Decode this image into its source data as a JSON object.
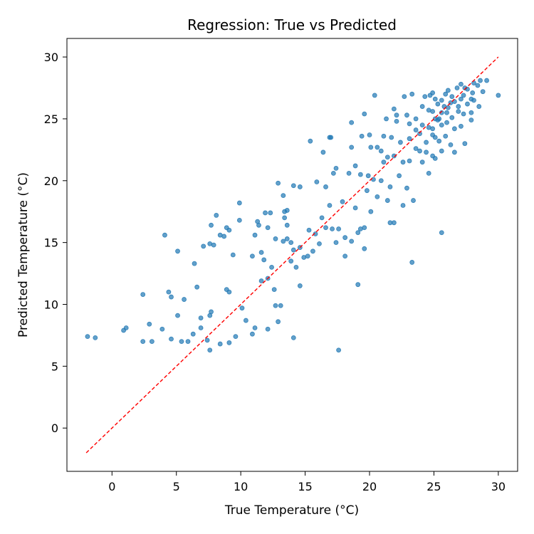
{
  "chart_data": {
    "type": "scatter",
    "title": "Regression: True vs Predicted",
    "xlabel": "True Temperature (°C)",
    "ylabel": "Predicted Temperature (°C)",
    "xlim": [
      -3.5,
      31.5
    ],
    "ylim": [
      -3.5,
      31.5
    ],
    "xticks": [
      0,
      5,
      10,
      15,
      20,
      25,
      30
    ],
    "yticks": [
      0,
      5,
      10,
      15,
      20,
      25,
      30
    ],
    "grid": false,
    "point_color": "#1f77b4",
    "reference_line": {
      "style": "dashed",
      "color": "#ff0000",
      "x": [
        -2,
        30
      ],
      "y": [
        -2,
        30
      ]
    },
    "series": [
      {
        "points": [
          [
            -1.9,
            7.4
          ],
          [
            -1.3,
            7.3
          ],
          [
            0.9,
            7.9
          ],
          [
            1.1,
            8.1
          ],
          [
            2.4,
            10.8
          ],
          [
            2.4,
            7.0
          ],
          [
            2.9,
            8.4
          ],
          [
            3.1,
            7.0
          ],
          [
            3.9,
            8.0
          ],
          [
            4.1,
            15.6
          ],
          [
            4.4,
            11.0
          ],
          [
            4.6,
            10.6
          ],
          [
            4.6,
            7.2
          ],
          [
            5.1,
            9.1
          ],
          [
            5.1,
            14.3
          ],
          [
            5.4,
            7.0
          ],
          [
            5.6,
            10.4
          ],
          [
            5.9,
            7.0
          ],
          [
            6.3,
            7.6
          ],
          [
            6.4,
            13.3
          ],
          [
            6.6,
            11.4
          ],
          [
            6.9,
            8.9
          ],
          [
            6.9,
            8.1
          ],
          [
            7.1,
            14.7
          ],
          [
            7.4,
            7.1
          ],
          [
            7.6,
            6.3
          ],
          [
            7.6,
            9.1
          ],
          [
            7.6,
            14.9
          ],
          [
            7.9,
            14.8
          ],
          [
            7.7,
            16.4
          ],
          [
            7.7,
            9.4
          ],
          [
            8.1,
            17.2
          ],
          [
            8.4,
            15.6
          ],
          [
            8.4,
            6.8
          ],
          [
            8.7,
            15.5
          ],
          [
            8.9,
            11.2
          ],
          [
            8.9,
            16.2
          ],
          [
            9.1,
            16.0
          ],
          [
            9.1,
            11.0
          ],
          [
            9.1,
            6.9
          ],
          [
            9.4,
            14.0
          ],
          [
            9.6,
            7.4
          ],
          [
            9.9,
            16.8
          ],
          [
            9.9,
            18.2
          ],
          [
            10.1,
            9.7
          ],
          [
            10.4,
            8.7
          ],
          [
            10.9,
            7.6
          ],
          [
            10.9,
            13.9
          ],
          [
            11.1,
            8.1
          ],
          [
            11.1,
            15.6
          ],
          [
            11.3,
            16.7
          ],
          [
            11.4,
            16.4
          ],
          [
            11.6,
            11.9
          ],
          [
            11.6,
            14.2
          ],
          [
            11.8,
            13.6
          ],
          [
            11.9,
            17.4
          ],
          [
            12.1,
            12.1
          ],
          [
            12.1,
            8.0
          ],
          [
            12.1,
            16.2
          ],
          [
            12.3,
            17.4
          ],
          [
            12.4,
            13.0
          ],
          [
            12.6,
            11.2
          ],
          [
            12.7,
            15.3
          ],
          [
            12.7,
            9.9
          ],
          [
            12.9,
            8.6
          ],
          [
            12.9,
            19.8
          ],
          [
            13.1,
            9.9
          ],
          [
            13.3,
            15.1
          ],
          [
            13.3,
            18.8
          ],
          [
            13.4,
            17.5
          ],
          [
            13.4,
            17.0
          ],
          [
            13.6,
            17.6
          ],
          [
            13.6,
            16.4
          ],
          [
            13.6,
            15.3
          ],
          [
            13.9,
            15.0
          ],
          [
            13.9,
            13.5
          ],
          [
            14.1,
            19.6
          ],
          [
            14.1,
            14.4
          ],
          [
            14.1,
            7.3
          ],
          [
            14.3,
            13.0
          ],
          [
            14.6,
            14.6
          ],
          [
            14.6,
            19.5
          ],
          [
            14.6,
            11.5
          ],
          [
            14.9,
            13.8
          ],
          [
            15.2,
            13.9
          ],
          [
            15.3,
            16.0
          ],
          [
            15.4,
            23.2
          ],
          [
            15.6,
            14.3
          ],
          [
            15.8,
            15.7
          ],
          [
            15.9,
            19.9
          ],
          [
            16.1,
            14.9
          ],
          [
            16.3,
            17.0
          ],
          [
            16.4,
            22.3
          ],
          [
            16.6,
            16.2
          ],
          [
            16.6,
            19.5
          ],
          [
            16.9,
            18.0
          ],
          [
            16.9,
            23.5
          ],
          [
            17.0,
            23.5
          ],
          [
            17.1,
            16.1
          ],
          [
            17.2,
            20.6
          ],
          [
            17.4,
            21.0
          ],
          [
            17.4,
            15.0
          ],
          [
            17.6,
            6.3
          ],
          [
            17.6,
            16.1
          ],
          [
            17.9,
            18.3
          ],
          [
            18.1,
            13.9
          ],
          [
            18.1,
            15.4
          ],
          [
            18.4,
            20.6
          ],
          [
            18.6,
            22.7
          ],
          [
            18.6,
            24.7
          ],
          [
            18.6,
            15.1
          ],
          [
            18.9,
            21.2
          ],
          [
            18.9,
            17.8
          ],
          [
            19.1,
            15.8
          ],
          [
            19.1,
            11.6
          ],
          [
            19.3,
            20.5
          ],
          [
            19.3,
            16.1
          ],
          [
            19.4,
            23.6
          ],
          [
            19.6,
            16.2
          ],
          [
            19.6,
            25.4
          ],
          [
            19.6,
            14.5
          ],
          [
            19.8,
            19.2
          ],
          [
            19.9,
            20.4
          ],
          [
            20.0,
            23.7
          ],
          [
            20.1,
            17.5
          ],
          [
            20.1,
            22.7
          ],
          [
            20.3,
            20.1
          ],
          [
            20.4,
            26.9
          ],
          [
            20.6,
            22.7
          ],
          [
            20.6,
            18.7
          ],
          [
            20.9,
            22.4
          ],
          [
            20.9,
            20.0
          ],
          [
            21.1,
            21.5
          ],
          [
            21.1,
            23.6
          ],
          [
            21.3,
            25.0
          ],
          [
            21.4,
            18.4
          ],
          [
            21.4,
            21.9
          ],
          [
            21.6,
            19.5
          ],
          [
            21.6,
            16.6
          ],
          [
            21.7,
            23.5
          ],
          [
            21.9,
            16.6
          ],
          [
            21.9,
            22.0
          ],
          [
            21.9,
            25.8
          ],
          [
            22.1,
            24.8
          ],
          [
            22.1,
            25.3
          ],
          [
            22.3,
            20.4
          ],
          [
            22.4,
            23.1
          ],
          [
            22.6,
            18.0
          ],
          [
            22.6,
            21.5
          ],
          [
            22.7,
            26.8
          ],
          [
            22.9,
            19.4
          ],
          [
            22.9,
            25.3
          ],
          [
            23.1,
            21.6
          ],
          [
            23.1,
            23.4
          ],
          [
            23.1,
            24.6
          ],
          [
            23.3,
            13.4
          ],
          [
            23.3,
            27.0
          ],
          [
            23.4,
            18.4
          ],
          [
            23.6,
            22.6
          ],
          [
            23.6,
            24.1
          ],
          [
            23.6,
            25.0
          ],
          [
            23.9,
            22.4
          ],
          [
            23.9,
            23.8
          ],
          [
            24.1,
            26.0
          ],
          [
            24.1,
            21.5
          ],
          [
            24.1,
            24.5
          ],
          [
            24.3,
            26.8
          ],
          [
            24.4,
            22.3
          ],
          [
            24.4,
            23.1
          ],
          [
            24.6,
            20.6
          ],
          [
            24.6,
            24.3
          ],
          [
            24.6,
            25.7
          ],
          [
            24.7,
            26.9
          ],
          [
            24.9,
            24.2
          ],
          [
            24.9,
            23.7
          ],
          [
            24.9,
            22.0
          ],
          [
            24.9,
            27.1
          ],
          [
            24.9,
            25.6
          ],
          [
            25.1,
            21.8
          ],
          [
            25.1,
            25.0
          ],
          [
            25.1,
            26.6
          ],
          [
            25.1,
            23.5
          ],
          [
            25.3,
            24.9
          ],
          [
            25.3,
            26.2
          ],
          [
            25.4,
            23.2
          ],
          [
            25.4,
            25.0
          ],
          [
            25.6,
            24.5
          ],
          [
            25.6,
            15.8
          ],
          [
            25.6,
            25.5
          ],
          [
            25.6,
            22.4
          ],
          [
            25.6,
            26.5
          ],
          [
            25.8,
            26.0
          ],
          [
            25.9,
            27.0
          ],
          [
            25.9,
            23.6
          ],
          [
            26.0,
            25.5
          ],
          [
            26.0,
            24.7
          ],
          [
            26.1,
            27.3
          ],
          [
            26.1,
            25.9
          ],
          [
            26.3,
            22.9
          ],
          [
            26.3,
            26.3
          ],
          [
            26.4,
            25.1
          ],
          [
            26.4,
            26.8
          ],
          [
            26.6,
            24.2
          ],
          [
            26.6,
            26.4
          ],
          [
            26.6,
            22.3
          ],
          [
            26.8,
            27.5
          ],
          [
            26.9,
            25.6
          ],
          [
            26.9,
            26.0
          ],
          [
            27.1,
            24.4
          ],
          [
            27.1,
            26.6
          ],
          [
            27.1,
            27.8
          ],
          [
            27.3,
            25.4
          ],
          [
            27.3,
            26.9
          ],
          [
            27.4,
            23.0
          ],
          [
            27.4,
            27.5
          ],
          [
            27.6,
            26.2
          ],
          [
            27.6,
            27.4
          ],
          [
            27.9,
            24.9
          ],
          [
            27.9,
            25.5
          ],
          [
            27.9,
            26.6
          ],
          [
            28.0,
            27.1
          ],
          [
            28.1,
            26.5
          ],
          [
            28.1,
            27.9
          ],
          [
            28.4,
            27.7
          ],
          [
            28.5,
            26.0
          ],
          [
            28.6,
            28.1
          ],
          [
            29.1,
            28.1
          ],
          [
            28.8,
            27.2
          ],
          [
            30.0,
            26.9
          ]
        ]
      }
    ]
  }
}
